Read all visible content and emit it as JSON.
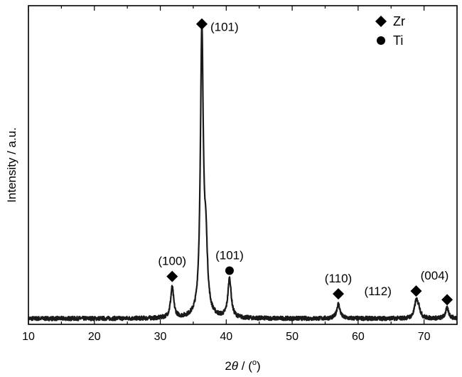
{
  "chart_data": {
    "type": "line",
    "xlabel": {
      "prefix": "2",
      "italic": "θ",
      "suffix": " / (",
      "sup": "o",
      "close": ")"
    },
    "ylabel": "Intensity / a.u.",
    "xlim": [
      10,
      75
    ],
    "ylim": [
      0,
      100
    ],
    "x_ticks": [
      10,
      20,
      30,
      40,
      50,
      60,
      70
    ],
    "x_minor_step": 5,
    "y_ticks_visible": false,
    "background_level": 2,
    "noise_amplitude": 0.7,
    "peaks": [
      {
        "x": 31.8,
        "height": 10.5,
        "width": 0.28
      },
      {
        "x": 36.3,
        "height": 98,
        "width": 0.26
      },
      {
        "x": 36.9,
        "height": 22,
        "width": 0.3
      },
      {
        "x": 40.5,
        "height": 13.5,
        "width": 0.3
      },
      {
        "x": 57.0,
        "height": 5,
        "width": 0.3
      },
      {
        "x": 68.8,
        "height": 5.5,
        "width": 0.3
      },
      {
        "x": 69.2,
        "height": 3,
        "width": 0.3
      },
      {
        "x": 73.5,
        "height": 3.5,
        "width": 0.3
      }
    ],
    "annotations": [
      {
        "x": 31.8,
        "y": 16.5,
        "marker": "diamond",
        "label": "(100)",
        "label_pos": "above"
      },
      {
        "x": 36.3,
        "y": 103.5,
        "marker": "diamond",
        "label": "(101)",
        "label_pos": "right"
      },
      {
        "x": 40.5,
        "y": 18.5,
        "marker": "circle",
        "label": "(101)",
        "label_pos": "above"
      },
      {
        "x": 57.0,
        "y": 10.5,
        "marker": "diamond",
        "label": "(110)",
        "label_pos": "above"
      },
      {
        "x": 68.8,
        "y": 11.5,
        "marker": "diamond",
        "label": "(004)",
        "label_pos": "above-right"
      },
      {
        "x": 73.5,
        "y": 8.5,
        "marker": "diamond",
        "label": "",
        "label_pos": "none"
      }
    ],
    "free_labels": [
      {
        "x": 63.0,
        "y": 11.5,
        "label": "(112)"
      }
    ],
    "legend": {
      "position": "top-right",
      "items": [
        {
          "marker": "diamond",
          "label": "Zr"
        },
        {
          "marker": "circle",
          "label": "Ti"
        }
      ]
    }
  }
}
